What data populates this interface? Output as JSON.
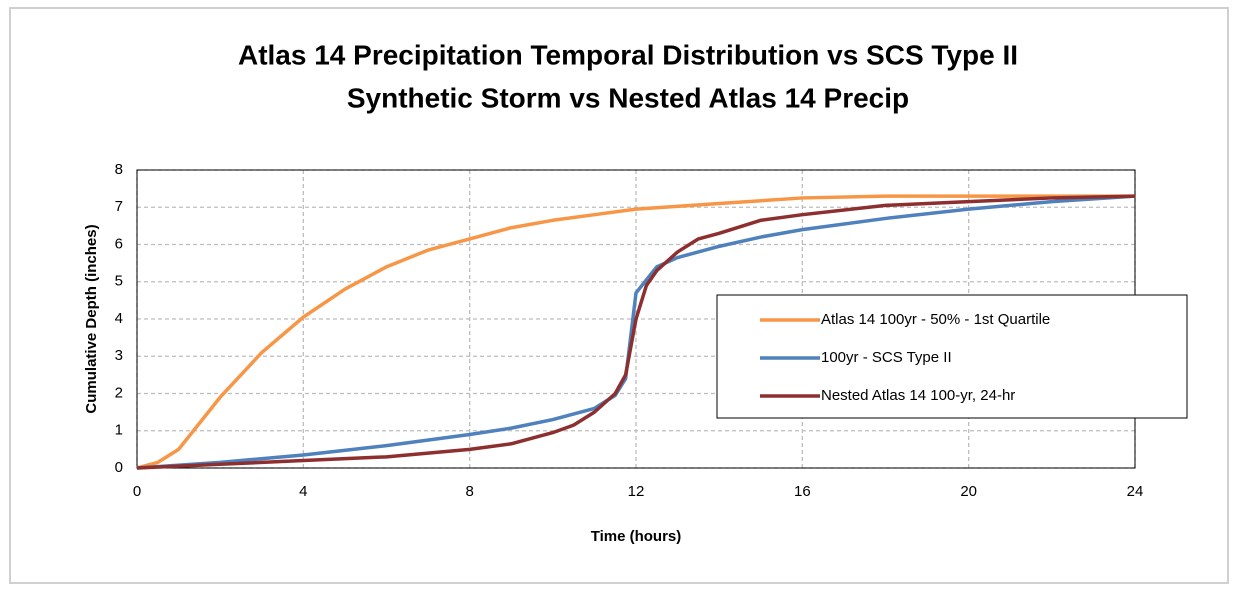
{
  "chart_data": {
    "type": "line",
    "title": [
      "Atlas 14 Precipitation Temporal Distribution vs SCS Type II",
      "Synthetic Storm vs Nested Atlas 14 Precip"
    ],
    "xlabel": "Time (hours)",
    "ylabel": "Cumulative Depth (inches)",
    "xlim": [
      0,
      24
    ],
    "xticks": [
      0,
      4,
      8,
      12,
      16,
      20,
      24
    ],
    "ylim": [
      0,
      8
    ],
    "yticks": [
      0,
      1,
      2,
      3,
      4,
      5,
      6,
      7,
      8
    ],
    "grid": true,
    "legend": "right",
    "series": [
      {
        "name": "Atlas 14 100yr - 50% - 1st Quartile",
        "color": "#f79646",
        "x": [
          0,
          0.5,
          1,
          1.5,
          2,
          3,
          4,
          5,
          6,
          7,
          8,
          9,
          10,
          11,
          12,
          14,
          16,
          18,
          20,
          22,
          24
        ],
        "values": [
          0,
          0.15,
          0.5,
          1.2,
          1.9,
          3.1,
          4.05,
          4.8,
          5.4,
          5.85,
          6.15,
          6.45,
          6.65,
          6.8,
          6.95,
          7.1,
          7.25,
          7.3,
          7.3,
          7.3,
          7.3
        ]
      },
      {
        "name": "100yr - SCS Type II",
        "color": "#4f81bd",
        "x": [
          0,
          2,
          4,
          6,
          8,
          9,
          10,
          11,
          11.5,
          11.75,
          12,
          12.5,
          13,
          14,
          15,
          16,
          18,
          20,
          22,
          24
        ],
        "values": [
          0,
          0.15,
          0.35,
          0.6,
          0.9,
          1.07,
          1.3,
          1.6,
          1.95,
          2.4,
          4.7,
          5.4,
          5.65,
          5.95,
          6.2,
          6.4,
          6.7,
          6.95,
          7.15,
          7.3
        ]
      },
      {
        "name": "Nested Atlas 14 100-yr, 24-hr",
        "color": "#8e2f2f",
        "x": [
          0,
          2,
          4,
          6,
          8,
          9,
          10,
          10.5,
          11,
          11.5,
          11.75,
          12,
          12.25,
          12.5,
          13,
          13.5,
          14,
          15,
          16,
          18,
          20,
          22,
          24
        ],
        "values": [
          0,
          0.1,
          0.2,
          0.3,
          0.5,
          0.65,
          0.95,
          1.15,
          1.5,
          2.0,
          2.5,
          4.0,
          4.9,
          5.3,
          5.8,
          6.15,
          6.3,
          6.65,
          6.8,
          7.05,
          7.15,
          7.25,
          7.3
        ]
      }
    ]
  }
}
